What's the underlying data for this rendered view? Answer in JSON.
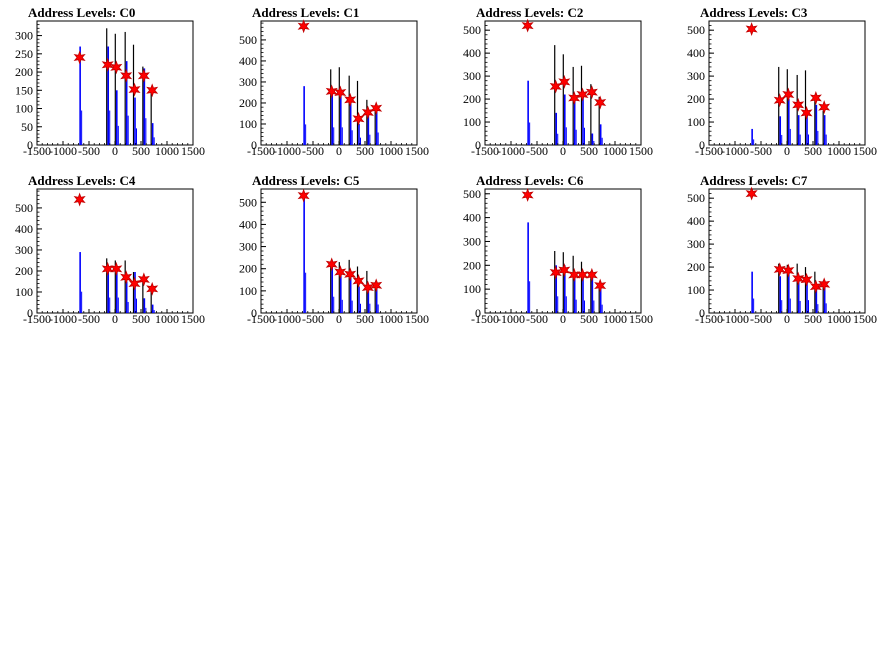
{
  "chart_data": [
    {
      "type": "bar",
      "title": "Address Levels: C0",
      "xlim": [
        -1500,
        1500
      ],
      "ylim": [
        0,
        340
      ],
      "yticks": [
        0,
        50,
        100,
        150,
        200,
        250,
        300
      ],
      "xticks": [
        -1500,
        -1000,
        -500,
        0,
        500,
        1000,
        1500
      ],
      "peaks": [
        {
          "x": -680,
          "black": null,
          "blue": 270
        },
        {
          "x": -140,
          "black": 320,
          "blue": 270
        },
        {
          "x": 25,
          "black": 305,
          "blue": 150
        },
        {
          "x": 215,
          "black": 310,
          "blue": 230
        },
        {
          "x": 375,
          "black": 275,
          "blue": 130
        },
        {
          "x": 555,
          "black": 215,
          "blue": 210
        },
        {
          "x": 715,
          "black": 150,
          "blue": 60
        }
      ],
      "markers": [
        {
          "x": -680,
          "y": 240
        },
        {
          "x": -140,
          "y": 220
        },
        {
          "x": 25,
          "y": 213
        },
        {
          "x": 215,
          "y": 190
        },
        {
          "x": 375,
          "y": 152
        },
        {
          "x": 555,
          "y": 190
        },
        {
          "x": 715,
          "y": 150
        }
      ]
    },
    {
      "type": "bar",
      "title": "Address Levels: C1",
      "xlim": [
        -1500,
        1500
      ],
      "ylim": [
        0,
        590
      ],
      "yticks": [
        0,
        100,
        200,
        300,
        400,
        500
      ],
      "xticks": [
        -1500,
        -1000,
        -500,
        0,
        500,
        1000,
        1500
      ],
      "peaks": [
        {
          "x": -680,
          "black": null,
          "blue": 280
        },
        {
          "x": -140,
          "black": 360,
          "blue": 240
        },
        {
          "x": 25,
          "black": 370,
          "blue": 240
        },
        {
          "x": 215,
          "black": 330,
          "blue": 200
        },
        {
          "x": 375,
          "black": 305,
          "blue": 100
        },
        {
          "x": 555,
          "black": 215,
          "blue": 140
        },
        {
          "x": 715,
          "black": 190,
          "blue": 170
        }
      ],
      "markers": [
        {
          "x": -680,
          "y": 565
        },
        {
          "x": -140,
          "y": 255
        },
        {
          "x": 25,
          "y": 250
        },
        {
          "x": 215,
          "y": 215
        },
        {
          "x": 375,
          "y": 125
        },
        {
          "x": 555,
          "y": 155
        },
        {
          "x": 715,
          "y": 175
        }
      ]
    },
    {
      "type": "bar",
      "title": "Address Levels: C2",
      "xlim": [
        -1500,
        1500
      ],
      "ylim": [
        0,
        540
      ],
      "yticks": [
        0,
        100,
        200,
        300,
        400,
        500
      ],
      "xticks": [
        -1500,
        -1000,
        -500,
        0,
        500,
        1000,
        1500
      ],
      "peaks": [
        {
          "x": -680,
          "black": null,
          "blue": 280
        },
        {
          "x": -140,
          "black": 435,
          "blue": 140
        },
        {
          "x": 25,
          "black": 395,
          "blue": 220
        },
        {
          "x": 215,
          "black": 340,
          "blue": 190
        },
        {
          "x": 375,
          "black": 345,
          "blue": 215
        },
        {
          "x": 555,
          "black": 265,
          "blue": 50
        },
        {
          "x": 715,
          "black": 210,
          "blue": 90
        }
      ],
      "markers": [
        {
          "x": -680,
          "y": 520
        },
        {
          "x": -140,
          "y": 255
        },
        {
          "x": 25,
          "y": 275
        },
        {
          "x": 215,
          "y": 205
        },
        {
          "x": 375,
          "y": 220
        },
        {
          "x": 555,
          "y": 230
        },
        {
          "x": 715,
          "y": 185
        }
      ]
    },
    {
      "type": "bar",
      "title": "Address Levels: C3",
      "xlim": [
        -1500,
        1500
      ],
      "ylim": [
        0,
        540
      ],
      "yticks": [
        0,
        100,
        200,
        300,
        400,
        500
      ],
      "xticks": [
        -1500,
        -1000,
        -500,
        0,
        500,
        1000,
        1500
      ],
      "peaks": [
        {
          "x": -680,
          "black": null,
          "blue": 70
        },
        {
          "x": -140,
          "black": 340,
          "blue": 125
        },
        {
          "x": 25,
          "black": 330,
          "blue": 200
        },
        {
          "x": 215,
          "black": 305,
          "blue": 130
        },
        {
          "x": 375,
          "black": 325,
          "blue": 130
        },
        {
          "x": 555,
          "black": 210,
          "blue": 175
        },
        {
          "x": 715,
          "black": 150,
          "blue": 130
        }
      ],
      "markers": [
        {
          "x": -680,
          "y": 505
        },
        {
          "x": -140,
          "y": 195
        },
        {
          "x": 25,
          "y": 220
        },
        {
          "x": 215,
          "y": 175
        },
        {
          "x": 375,
          "y": 140
        },
        {
          "x": 555,
          "y": 205
        },
        {
          "x": 715,
          "y": 165
        }
      ]
    },
    {
      "type": "bar",
      "title": "Address Levels: C4",
      "xlim": [
        -1500,
        1500
      ],
      "ylim": [
        0,
        590
      ],
      "yticks": [
        0,
        100,
        200,
        300,
        400,
        500
      ],
      "xticks": [
        -1500,
        -1000,
        -500,
        0,
        500,
        1000,
        1500
      ],
      "peaks": [
        {
          "x": -680,
          "black": null,
          "blue": 290
        },
        {
          "x": -140,
          "black": 260,
          "blue": 210
        },
        {
          "x": 25,
          "black": 250,
          "blue": 210
        },
        {
          "x": 215,
          "black": 250,
          "blue": 150
        },
        {
          "x": 375,
          "black": 195,
          "blue": 195
        },
        {
          "x": 555,
          "black": 165,
          "blue": 70
        },
        {
          "x": 715,
          "black": 130,
          "blue": 40
        }
      ],
      "markers": [
        {
          "x": -680,
          "y": 540
        },
        {
          "x": -140,
          "y": 210
        },
        {
          "x": 25,
          "y": 210
        },
        {
          "x": 215,
          "y": 170
        },
        {
          "x": 375,
          "y": 140
        },
        {
          "x": 555,
          "y": 160
        },
        {
          "x": 715,
          "y": 115
        }
      ]
    },
    {
      "type": "bar",
      "title": "Address Levels: C5",
      "xlim": [
        -1500,
        1500
      ],
      "ylim": [
        0,
        560
      ],
      "yticks": [
        0,
        100,
        200,
        300,
        400,
        500
      ],
      "xticks": [
        -1500,
        -1000,
        -500,
        0,
        500,
        1000,
        1500
      ],
      "peaks": [
        {
          "x": -680,
          "black": null,
          "blue": 520
        },
        {
          "x": -140,
          "black": 220,
          "blue": 210
        },
        {
          "x": 25,
          "black": 230,
          "blue": 170
        },
        {
          "x": 215,
          "black": 240,
          "blue": 160
        },
        {
          "x": 375,
          "black": 210,
          "blue": 120
        },
        {
          "x": 555,
          "black": 190,
          "blue": 120
        },
        {
          "x": 715,
          "black": 140,
          "blue": 110
        }
      ],
      "markers": [
        {
          "x": -680,
          "y": 530
        },
        {
          "x": -140,
          "y": 220
        },
        {
          "x": 25,
          "y": 185
        },
        {
          "x": 215,
          "y": 175
        },
        {
          "x": 375,
          "y": 145
        },
        {
          "x": 555,
          "y": 115
        },
        {
          "x": 715,
          "y": 125
        }
      ]
    },
    {
      "type": "bar",
      "title": "Address Levels: C6",
      "xlim": [
        -1500,
        1500
      ],
      "ylim": [
        0,
        520
      ],
      "yticks": [
        0,
        100,
        200,
        300,
        400,
        500
      ],
      "xticks": [
        -1500,
        -1000,
        -500,
        0,
        500,
        1000,
        1500
      ],
      "peaks": [
        {
          "x": -680,
          "black": null,
          "blue": 380
        },
        {
          "x": -140,
          "black": 260,
          "blue": 200
        },
        {
          "x": 25,
          "black": 255,
          "blue": 200
        },
        {
          "x": 215,
          "black": 240,
          "blue": 160
        },
        {
          "x": 375,
          "black": 215,
          "blue": 150
        },
        {
          "x": 555,
          "black": 175,
          "blue": 150
        },
        {
          "x": 715,
          "black": 120,
          "blue": 100
        }
      ],
      "markers": [
        {
          "x": -680,
          "y": 495
        },
        {
          "x": -140,
          "y": 170
        },
        {
          "x": 25,
          "y": 180
        },
        {
          "x": 215,
          "y": 160
        },
        {
          "x": 375,
          "y": 160
        },
        {
          "x": 555,
          "y": 160
        },
        {
          "x": 715,
          "y": 115
        }
      ]
    },
    {
      "type": "bar",
      "title": "Address Levels: C7",
      "xlim": [
        -1500,
        1500
      ],
      "ylim": [
        0,
        540
      ],
      "yticks": [
        0,
        100,
        200,
        300,
        400,
        500
      ],
      "xticks": [
        -1500,
        -1000,
        -500,
        0,
        500,
        1000,
        1500
      ],
      "peaks": [
        {
          "x": -680,
          "black": null,
          "blue": 180
        },
        {
          "x": -140,
          "black": 215,
          "blue": 160
        },
        {
          "x": 25,
          "black": 210,
          "blue": 180
        },
        {
          "x": 215,
          "black": 215,
          "blue": 150
        },
        {
          "x": 375,
          "black": 200,
          "blue": 160
        },
        {
          "x": 555,
          "black": 180,
          "blue": 110
        },
        {
          "x": 715,
          "black": 140,
          "blue": 120
        }
      ],
      "markers": [
        {
          "x": -680,
          "y": 520
        },
        {
          "x": -140,
          "y": 190
        },
        {
          "x": 25,
          "y": 185
        },
        {
          "x": 215,
          "y": 150
        },
        {
          "x": 375,
          "y": 145
        },
        {
          "x": 555,
          "y": 115
        },
        {
          "x": 715,
          "y": 125
        }
      ]
    }
  ],
  "colors": {
    "axis": "#000000",
    "hist_black": "#000000",
    "hist_blue": "#0000ff",
    "marker_fill": "#ff0000",
    "marker_stroke": "#c00000"
  }
}
